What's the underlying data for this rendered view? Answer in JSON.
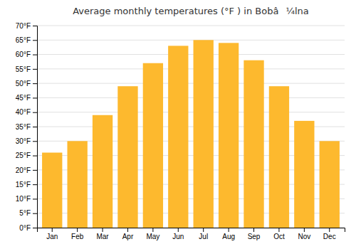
{
  "chart_data": {
    "type": "bar",
    "title": "Average monthly temperatures (°F ) in Bobâ¼lna",
    "categories": [
      "Jan",
      "Feb",
      "Mar",
      "Apr",
      "May",
      "Jun",
      "Jul",
      "Aug",
      "Sep",
      "Oct",
      "Nov",
      "Dec"
    ],
    "values": [
      26,
      30,
      39,
      49,
      57,
      63,
      65,
      64,
      58,
      49,
      37,
      30
    ],
    "color": "#FDB92E",
    "ylim": [
      0,
      70
    ],
    "yticks": [
      {
        "value": 0,
        "label": "0°F"
      },
      {
        "value": 5,
        "label": "5°F"
      },
      {
        "value": 10,
        "label": "10°F"
      },
      {
        "value": 15,
        "label": "15°F"
      },
      {
        "value": 20,
        "label": "20°F"
      },
      {
        "value": 25,
        "label": "25°F"
      },
      {
        "value": 30,
        "label": "30°F"
      },
      {
        "value": 35,
        "label": "35°F"
      },
      {
        "value": 40,
        "label": "40°F"
      },
      {
        "value": 45,
        "label": "45°F"
      },
      {
        "value": 50,
        "label": "50°F"
      },
      {
        "value": 55,
        "label": "55°F"
      },
      {
        "value": 60,
        "label": "60°F"
      },
      {
        "value": 65,
        "label": "65°F"
      },
      {
        "value": 70,
        "label": "70°F"
      }
    ],
    "grid": true
  }
}
